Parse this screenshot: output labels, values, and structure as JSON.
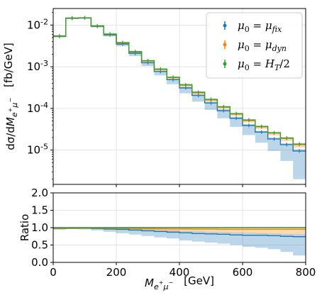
{
  "chart_data": {
    "type": "step",
    "x_edges": [
      0,
      40,
      80,
      120,
      160,
      200,
      240,
      280,
      320,
      360,
      400,
      440,
      480,
      520,
      560,
      600,
      640,
      680,
      720,
      760,
      800
    ],
    "xlabel": "M_{e^+μ^-}  [GeV]",
    "xlim": [
      0,
      800
    ],
    "xticks": [
      "0",
      "200",
      "400",
      "600",
      "800"
    ],
    "top_panel": {
      "ylabel": "dσ/dM_{e^+μ^-}  [fb/GeV]",
      "yscale": "log",
      "ylim": [
        1.5e-06,
        0.025
      ],
      "yticks": [
        {
          "value": 0.01,
          "mant": "10",
          "exp": "-2"
        },
        {
          "value": 0.001,
          "mant": "10",
          "exp": "-3"
        },
        {
          "value": 0.0001,
          "mant": "10",
          "exp": "-4"
        },
        {
          "value": 1e-05,
          "mant": "10",
          "exp": "-5"
        }
      ],
      "series": [
        {
          "name": "μ0 = μ_fix",
          "color": "#1f77b4",
          "values": [
            0.0053,
            0.0145,
            0.0148,
            0.0093,
            0.0058,
            0.0035,
            0.0021,
            0.00125,
            0.00077,
            0.00049,
            0.00031,
            0.000205,
            0.000135,
            8.8e-05,
            5.8e-05,
            3.9e-05,
            2.7e-05,
            1.85e-05,
            1.35e-05,
            9.5e-06
          ],
          "band_low": [
            0.0052,
            0.014,
            0.0142,
            0.0088,
            0.0053,
            0.0031,
            0.0018,
            0.00104,
            0.00062,
            0.00038,
            0.00023,
            0.000145,
            9.2e-05,
            5.8e-05,
            3.6e-05,
            2.3e-05,
            1.5e-05,
            9.5e-06,
            5.5e-06,
            2e-06
          ],
          "band_high": [
            0.0054,
            0.0148,
            0.015,
            0.0094,
            0.0059,
            0.0036,
            0.0022,
            0.0013,
            0.0008,
            0.00051,
            0.00033,
            0.00022,
            0.000145,
            9.5e-05,
            6.3e-05,
            4.2e-05,
            2.9e-05,
            2e-05,
            1.45e-05,
            1.05e-05
          ]
        },
        {
          "name": "μ0 = μ_dyn",
          "color": "#ff7f0e",
          "values": [
            0.0054,
            0.0146,
            0.0149,
            0.0095,
            0.006,
            0.0037,
            0.00225,
            0.00137,
            0.00086,
            0.00055,
            0.00036,
            0.000238,
            0.00016,
            0.000107,
            7.3e-05,
            5.1e-05,
            3.6e-05,
            2.55e-05,
            1.9e-05,
            1.35e-05
          ],
          "band_low": [
            0.0052,
            0.0142,
            0.0145,
            0.0091,
            0.0057,
            0.0035,
            0.0021,
            0.00128,
            0.0008,
            0.00051,
            0.00033,
            0.000218,
            0.000146,
            9.7e-05,
            6.6e-05,
            4.6e-05,
            3.2e-05,
            2.25e-05,
            1.65e-05,
            1.15e-05
          ],
          "band_high": [
            0.0055,
            0.0148,
            0.0151,
            0.0097,
            0.0062,
            0.0039,
            0.0024,
            0.00145,
            0.0009,
            0.00058,
            0.00038,
            0.00025,
            0.000168,
            0.000112,
            7.7e-05,
            5.4e-05,
            3.8e-05,
            2.7e-05,
            2e-05,
            1.42e-05
          ]
        },
        {
          "name": "μ0 = H_T/2",
          "color": "#2ca02c",
          "values": [
            0.0055,
            0.0148,
            0.015,
            0.0096,
            0.0061,
            0.0038,
            0.0023,
            0.0014,
            0.00088,
            0.00056,
            0.00037,
            0.000245,
            0.000165,
            0.00011,
            7.5e-05,
            5.3e-05,
            3.7e-05,
            2.6e-05,
            1.95e-05,
            1.4e-05
          ],
          "band_low": [
            0.0054,
            0.0146,
            0.0148,
            0.0094,
            0.006,
            0.0037,
            0.00225,
            0.00137,
            0.00086,
            0.00055,
            0.00036,
            0.00024,
            0.000161,
            0.000107,
            7.3e-05,
            5.1e-05,
            3.6e-05,
            2.52e-05,
            1.88e-05,
            1.34e-05
          ],
          "band_high": [
            0.0056,
            0.015,
            0.0152,
            0.0097,
            0.0062,
            0.0039,
            0.0024,
            0.00143,
            0.0009,
            0.00057,
            0.00038,
            0.00025,
            0.000168,
            0.000112,
            7.7e-05,
            5.4e-05,
            3.8e-05,
            2.65e-05,
            2e-05,
            1.43e-05
          ]
        }
      ]
    },
    "ratio_panel": {
      "ylabel": "Ratio",
      "ylim": [
        0.0,
        2.0
      ],
      "yticks": [
        "0.0",
        "0.5",
        "1.0",
        "1.5",
        "2.0"
      ],
      "series": [
        {
          "name": "μ0 = μ_fix",
          "color": "#1f77b4",
          "values": [
            0.97,
            0.98,
            0.985,
            0.975,
            0.96,
            0.95,
            0.93,
            0.91,
            0.89,
            0.87,
            0.85,
            0.83,
            0.82,
            0.81,
            0.79,
            0.78,
            0.78,
            0.77,
            0.75,
            0.74
          ],
          "band_low": [
            0.95,
            0.96,
            0.95,
            0.92,
            0.88,
            0.84,
            0.8,
            0.76,
            0.72,
            0.69,
            0.63,
            0.6,
            0.57,
            0.54,
            0.5,
            0.45,
            0.42,
            0.38,
            0.3,
            0.2
          ],
          "band_high": [
            0.99,
            1.0,
            1.0,
            0.99,
            0.98,
            0.97,
            0.96,
            0.95,
            0.93,
            0.92,
            0.9,
            0.89,
            0.88,
            0.87,
            0.86,
            0.85,
            0.84,
            0.83,
            0.82,
            0.81
          ]
        },
        {
          "name": "μ0 = μ_dyn",
          "color": "#ff7f0e",
          "values": [
            0.98,
            0.99,
            0.99,
            0.99,
            0.985,
            0.98,
            0.975,
            0.97,
            0.965,
            0.96,
            0.96,
            0.955,
            0.955,
            0.95,
            0.95,
            0.95,
            0.95,
            0.95,
            0.95,
            0.95
          ],
          "band_low": [
            0.95,
            0.96,
            0.96,
            0.955,
            0.945,
            0.935,
            0.925,
            0.915,
            0.905,
            0.895,
            0.885,
            0.875,
            0.865,
            0.855,
            0.845,
            0.835,
            0.825,
            0.815,
            0.805,
            0.8
          ],
          "band_high": [
            1.01,
            1.01,
            1.01,
            1.01,
            1.01,
            1.01,
            1.0,
            1.0,
            1.0,
            1.0,
            1.0,
            1.0,
            1.0,
            1.0,
            1.0,
            1.0,
            1.0,
            1.0,
            1.0,
            1.0
          ]
        },
        {
          "name": "μ0 = H_T/2",
          "color": "#2ca02c",
          "values": [
            1.0,
            1.0,
            1.0,
            1.0,
            1.0,
            1.0,
            1.0,
            1.0,
            1.0,
            1.0,
            1.0,
            1.0,
            1.0,
            1.0,
            1.0,
            1.0,
            1.0,
            1.0,
            1.0,
            1.0
          ],
          "band_low": [
            0.99,
            0.99,
            0.99,
            0.99,
            0.99,
            0.99,
            0.99,
            0.99,
            0.99,
            0.99,
            0.99,
            0.99,
            0.99,
            0.99,
            0.99,
            0.99,
            0.99,
            0.99,
            0.99,
            0.99
          ],
          "band_high": [
            1.02,
            1.02,
            1.02,
            1.02,
            1.02,
            1.02,
            1.02,
            1.02,
            1.02,
            1.02,
            1.02,
            1.02,
            1.02,
            1.02,
            1.02,
            1.02,
            1.02,
            1.02,
            1.02,
            1.02
          ]
        }
      ]
    },
    "legend": {
      "placement": "top-right",
      "entries": [
        {
          "lhs": "μ",
          "lhs_sub": "0",
          "eq": " = ",
          "rhs": "μ",
          "rhs_sub": "fix",
          "rhs_tail": "",
          "color": "#1f77b4"
        },
        {
          "lhs": "μ",
          "lhs_sub": "0",
          "eq": " = ",
          "rhs": "μ",
          "rhs_sub": "dyn",
          "rhs_tail": "",
          "color": "#ff7f0e"
        },
        {
          "lhs": "μ",
          "lhs_sub": "0",
          "eq": " = ",
          "rhs": "H",
          "rhs_sub": "T",
          "rhs_tail": "/2",
          "color": "#2ca02c"
        }
      ]
    },
    "grid": true
  }
}
